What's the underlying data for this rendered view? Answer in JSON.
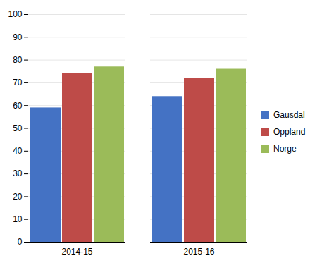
{
  "chart_data": {
    "type": "bar",
    "categories": [
      "2014-15",
      "2015-16"
    ],
    "series": [
      {
        "name": "Gausdal",
        "color": "#4472C4",
        "values": [
          59,
          64
        ]
      },
      {
        "name": "Oppland",
        "color": "#BE4B48",
        "values": [
          74,
          72
        ]
      },
      {
        "name": "Norge",
        "color": "#9BBB59",
        "values": [
          77,
          76
        ]
      }
    ],
    "ylim": [
      0,
      100
    ],
    "yticks": [
      0,
      10,
      20,
      30,
      40,
      50,
      60,
      70,
      80,
      90,
      100
    ],
    "grid": true,
    "legend": "right"
  }
}
